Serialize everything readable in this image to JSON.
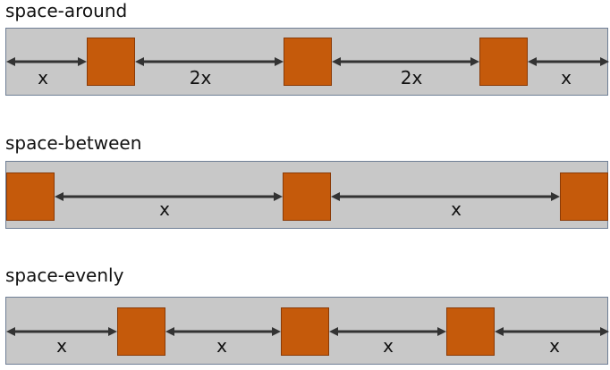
{
  "colors": {
    "bar_bg": "#c8c8c8",
    "bar_border": "#6f7f96",
    "box_fill": "#c55a0b",
    "arrow": "#333333"
  },
  "diagrams": [
    {
      "title": "space-around",
      "gap_labels": [
        "x",
        "2x",
        "2x",
        "x"
      ]
    },
    {
      "title": "space-between",
      "gap_labels": [
        "x",
        "x"
      ]
    },
    {
      "title": "space-evenly",
      "gap_labels": [
        "x",
        "x",
        "x",
        "x"
      ]
    }
  ]
}
